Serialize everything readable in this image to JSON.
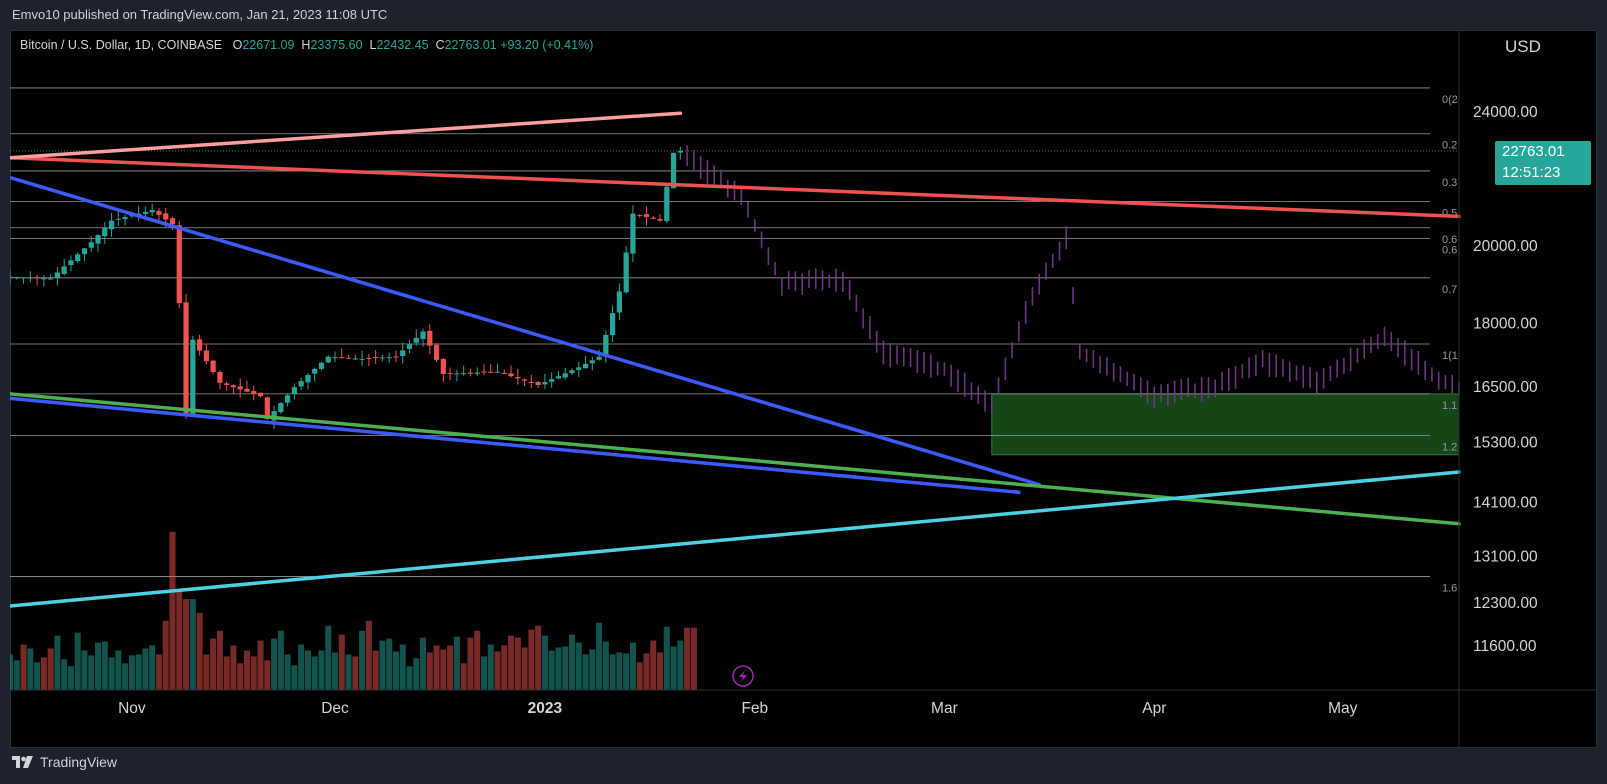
{
  "header": {
    "published_line": "Emvo10 published on TradingView.com, Jan 21, 2023 11:08 UTC"
  },
  "legend": {
    "symbol": "Bitcoin / U.S. Dollar, 1D, COINBASE",
    "open_label": "O",
    "open": "22671.09",
    "high_label": "H",
    "high": "23375.60",
    "low_label": "L",
    "low": "22432.45",
    "close_label": "C",
    "close": "22763.01",
    "change": "+93.20 (+0.41%)"
  },
  "price_axis": {
    "currency": "USD",
    "last_price": "22763.01",
    "countdown": "12:51:23"
  },
  "footer": {
    "brand": "TradingView"
  },
  "colors": {
    "up": "#26a69a",
    "down": "#ef5350",
    "accent_tag": "#26a69a",
    "background": "#000000"
  },
  "chart_data": {
    "type": "candlestick",
    "symbol": "Bitcoin / U.S. Dollar",
    "interval": "1D",
    "exchange": "COINBASE",
    "y_scale": "log",
    "ylim": [
      10800,
      26200
    ],
    "y_ticks": [
      24000,
      20000,
      18000,
      16500,
      15300,
      14100,
      13100,
      12300,
      11600
    ],
    "x_tick_labels": [
      "Nov",
      "Dec",
      "2023",
      "Feb",
      "Mar",
      "Apr",
      "May"
    ],
    "fib_labels": [
      "0(2",
      "0.2",
      "0.3",
      "0.5",
      "0.6",
      "0.6",
      "0.7",
      "1(1",
      "1.1",
      "1.2",
      "1.6"
    ],
    "last_close": 22763.01,
    "price_path": [
      [
        "2022-10-14",
        19180
      ],
      [
        "2022-10-20",
        19130
      ],
      [
        "2022-10-26",
        20100
      ],
      [
        "2022-10-29",
        20700
      ],
      [
        "2022-11-04",
        21000
      ],
      [
        "2022-11-07",
        20600
      ],
      [
        "2022-11-08",
        18500
      ],
      [
        "2022-11-09",
        15900
      ],
      [
        "2022-11-10",
        17600
      ],
      [
        "2022-11-14",
        16600
      ],
      [
        "2022-11-20",
        16300
      ],
      [
        "2022-11-21",
        15800
      ],
      [
        "2022-11-25",
        16500
      ],
      [
        "2022-11-30",
        17200
      ],
      [
        "2022-12-05",
        17150
      ],
      [
        "2022-12-10",
        17200
      ],
      [
        "2022-12-14",
        17800
      ],
      [
        "2022-12-17",
        16800
      ],
      [
        "2022-12-25",
        16850
      ],
      [
        "2022-12-31",
        16550
      ],
      [
        "2023-01-06",
        16950
      ],
      [
        "2023-01-09",
        17200
      ],
      [
        "2023-01-12",
        18800
      ],
      [
        "2023-01-14",
        20900
      ],
      [
        "2023-01-18",
        20700
      ],
      [
        "2023-01-20",
        22700
      ],
      [
        "2023-01-21",
        22763
      ]
    ],
    "projection_path": [
      [
        "2023-01-22",
        22600
      ],
      [
        "2023-01-30",
        21400
      ],
      [
        "2023-02-05",
        19000
      ],
      [
        "2023-02-14",
        19100
      ],
      [
        "2023-02-20",
        17300
      ],
      [
        "2023-03-01",
        16900
      ],
      [
        "2023-03-08",
        16100
      ],
      [
        "2023-03-14",
        18700
      ],
      [
        "2023-03-19",
        20200
      ],
      [
        "2023-03-21",
        17300
      ],
      [
        "2023-03-26",
        16900
      ],
      [
        "2023-04-01",
        16300
      ],
      [
        "2023-04-10",
        16500
      ],
      [
        "2023-04-17",
        17100
      ],
      [
        "2023-04-25",
        16600
      ],
      [
        "2023-05-05",
        17700
      ],
      [
        "2023-05-11",
        16900
      ],
      [
        "2023-05-16",
        16450
      ]
    ],
    "demand_zone": {
      "from": "2023-03-08",
      "to": "2023-05-16",
      "low": 15050,
      "high": 16350
    },
    "trendlines": [
      {
        "color": "#ef5350",
        "from": [
          "2022-10-14",
          22550
        ],
        "to": [
          "2023-05-16",
          20820
        ]
      },
      {
        "color": "#ff9e9e",
        "from": [
          "2022-10-14",
          22550
        ],
        "to": [
          "2023-01-21",
          23960
        ]
      },
      {
        "color": "#3d5afe",
        "from": [
          "2022-10-14",
          21950
        ],
        "to": [
          "2023-03-15",
          14450
        ]
      },
      {
        "color": "#3d5afe",
        "from": [
          "2022-10-14",
          16250
        ],
        "to": [
          "2023-03-12",
          14300
        ]
      },
      {
        "color": "#4caf50",
        "from": [
          "2022-10-14",
          16350
        ],
        "to": [
          "2023-05-16",
          13700
        ]
      },
      {
        "color": "#4dd0e1",
        "from": [
          "2022-10-14",
          12250
        ],
        "to": [
          "2023-05-16",
          14700
        ]
      }
    ],
    "fib_levels": [
      24800,
      23300,
      22150,
      21250,
      20500,
      20200,
      19150,
      17500,
      16350,
      15450,
      12750
    ],
    "volume": [
      36,
      30,
      46,
      42,
      28,
      33,
      42,
      55,
      31,
      24,
      58,
      40,
      35,
      48,
      49,
      33,
      40,
      27,
      35,
      36,
      42,
      45,
      36,
      70,
      160,
      100,
      92,
      92,
      78,
      36,
      52,
      60,
      34,
      45,
      27,
      40,
      34,
      50,
      30,
      52,
      60,
      36,
      25,
      46,
      40,
      34,
      40,
      65,
      38,
      56,
      36,
      34,
      60,
      70,
      40,
      50,
      52,
      39,
      46,
      24,
      32,
      53,
      38,
      45,
      41,
      45,
      54,
      27,
      53,
      60,
      34,
      46,
      39,
      45,
      55,
      53,
      43,
      61,
      65,
      55,
      40,
      43,
      44,
      56,
      48,
      36,
      41,
      68,
      49,
      36,
      38,
      37,
      48,
      28,
      37,
      50,
      38,
      64,
      44,
      50,
      63,
      63
    ]
  }
}
